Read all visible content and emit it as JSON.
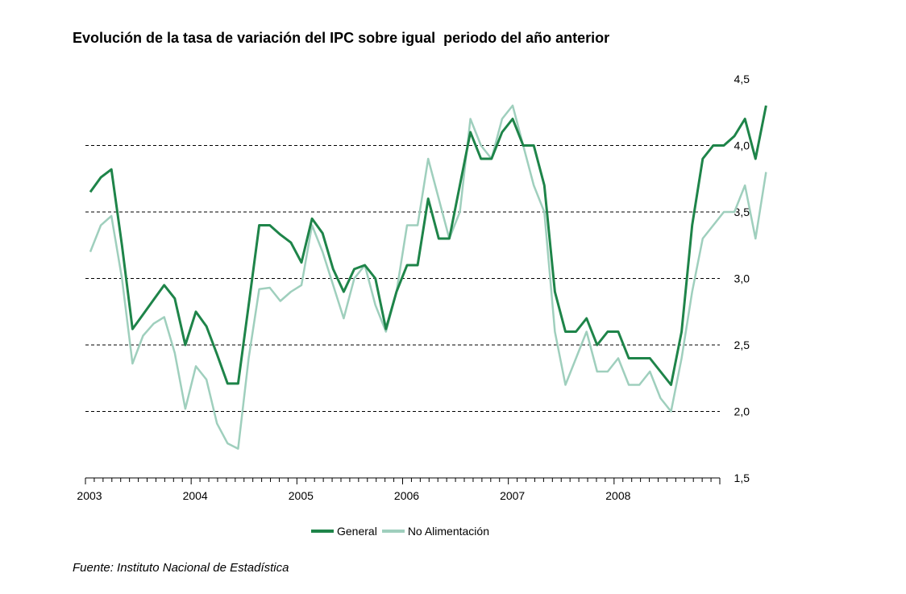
{
  "chart_data": {
    "type": "line",
    "title": "Evolución de la tasa de variación del IPC sobre igual  periodo del año anterior",
    "source": "Fuente: Instituto Nacional de Estadística",
    "ylim": [
      1.5,
      4.5
    ],
    "yticks": [
      "1,5",
      "2,0",
      "2,5",
      "3,0",
      "3,5",
      "4,0",
      "4,5"
    ],
    "ytick_values": [
      1.5,
      2.0,
      2.5,
      3.0,
      3.5,
      4.0,
      4.5
    ],
    "gridlines": [
      2.0,
      2.5,
      3.0,
      3.5,
      4.0
    ],
    "x_start_year": 2003,
    "x_months": 72,
    "year_labels": [
      "2003",
      "2004",
      "2005",
      "2006",
      "2007",
      "2008"
    ],
    "legend_position": "bottom",
    "series": [
      {
        "name": "General",
        "color": "#1e8449",
        "values": [
          3.65,
          3.76,
          3.82,
          3.25,
          2.62,
          2.73,
          2.84,
          2.95,
          2.85,
          2.5,
          2.75,
          2.64,
          2.43,
          2.21,
          2.21,
          2.8,
          3.4,
          3.4,
          3.33,
          3.27,
          3.12,
          3.45,
          3.34,
          3.07,
          2.9,
          3.07,
          3.1,
          3.0,
          2.62,
          2.9,
          3.1,
          3.1,
          3.6,
          3.3,
          3.3,
          3.7,
          4.1,
          3.9,
          3.9,
          4.1,
          4.2,
          4.0,
          4.0,
          3.7,
          2.9,
          2.6,
          2.6,
          2.7,
          2.5,
          2.6,
          2.6,
          2.4,
          2.4,
          2.4,
          2.3,
          2.2,
          2.6,
          3.4,
          3.9,
          4.0,
          4.0,
          4.07,
          4.2,
          3.9,
          4.3
        ]
      },
      {
        "name": "No Alimentación",
        "color": "#9fcfbd",
        "values": [
          3.2,
          3.4,
          3.47,
          3.0,
          2.36,
          2.57,
          2.66,
          2.71,
          2.44,
          2.02,
          2.34,
          2.24,
          1.91,
          1.76,
          1.72,
          2.4,
          2.92,
          2.93,
          2.83,
          2.9,
          2.95,
          3.4,
          3.2,
          2.95,
          2.7,
          3.0,
          3.1,
          2.8,
          2.6,
          2.9,
          3.4,
          3.4,
          3.9,
          3.6,
          3.3,
          3.5,
          4.2,
          4.0,
          3.9,
          4.2,
          4.3,
          4.0,
          3.7,
          3.5,
          2.6,
          2.2,
          2.4,
          2.6,
          2.3,
          2.3,
          2.4,
          2.2,
          2.2,
          2.3,
          2.1,
          2.0,
          2.4,
          2.9,
          3.3,
          3.4,
          3.5,
          3.5,
          3.7,
          3.3,
          3.8
        ]
      }
    ]
  }
}
